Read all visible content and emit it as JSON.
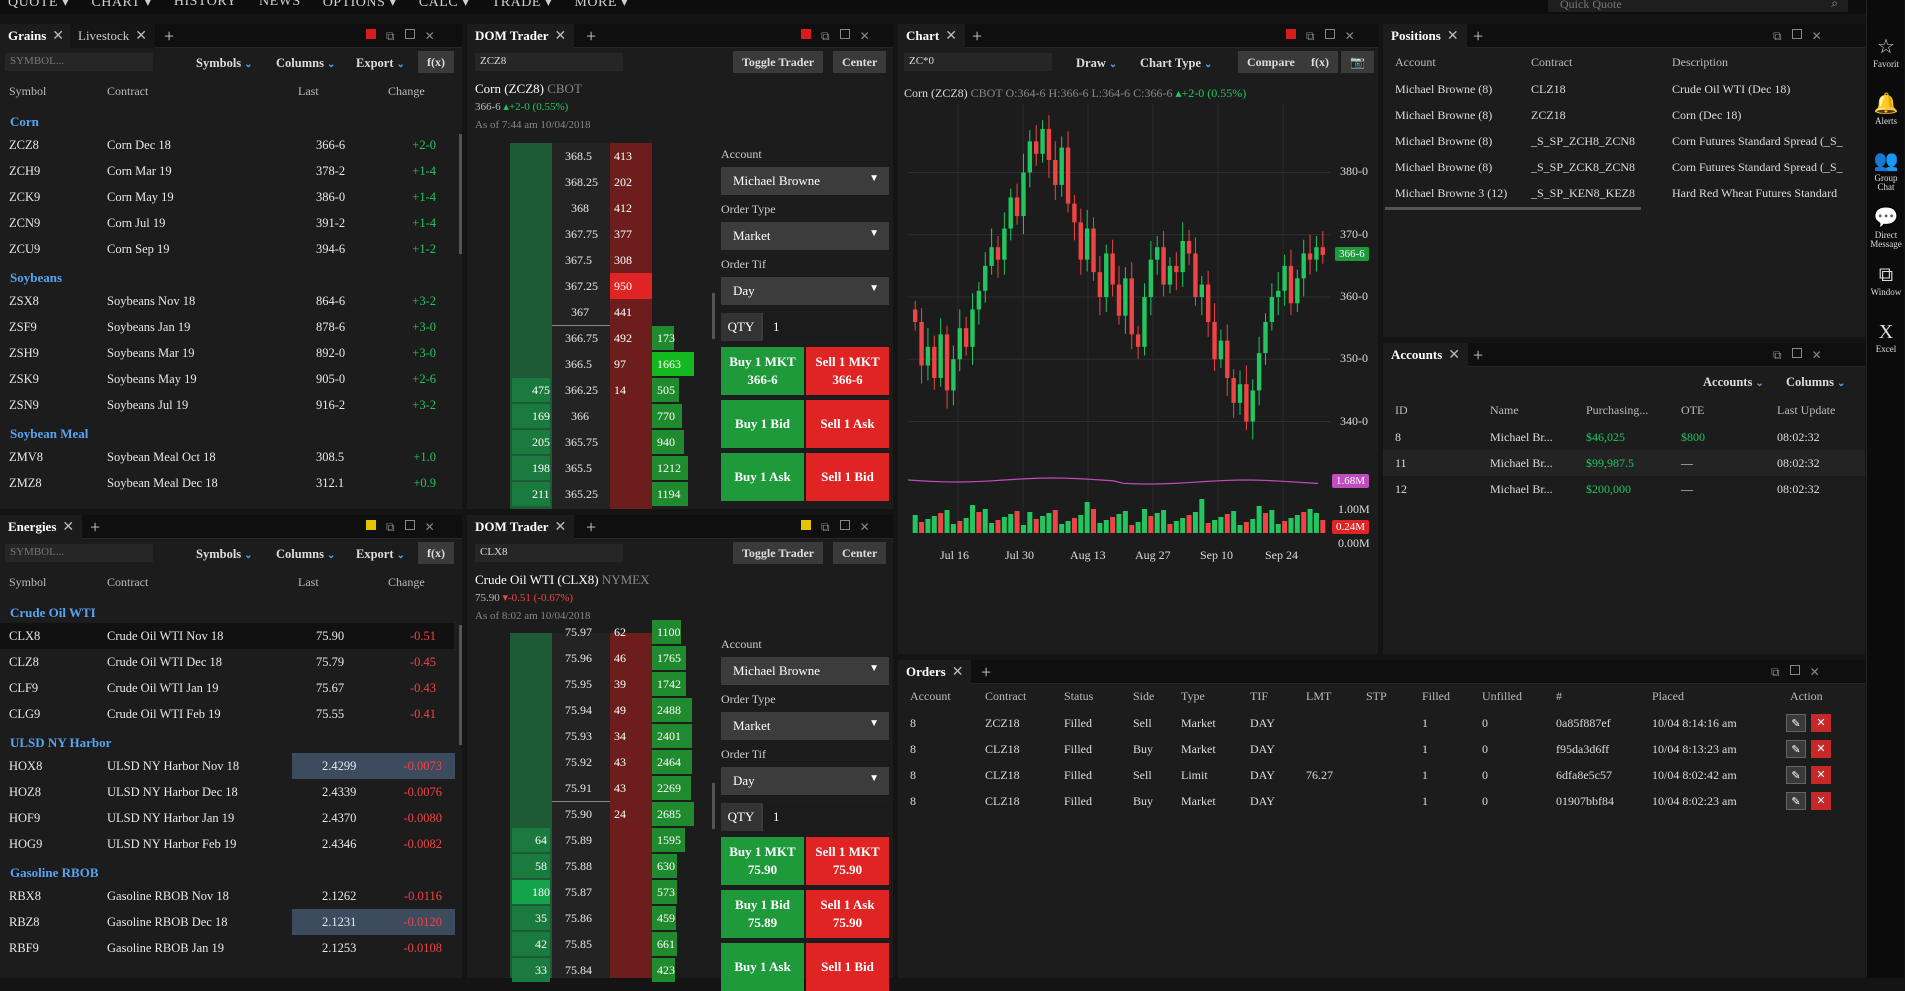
{
  "topbar": {
    "menu": [
      "QUOTE ▾",
      "CHART ▾",
      "HISTORY",
      "NEWS",
      "OPTIONS ▾",
      "CALC ▾",
      "TRADE ▾",
      "MORE ▾"
    ],
    "quick_placeholder": "Quick Quote"
  },
  "rail": [
    {
      "icon": "☆",
      "label": "Favorit"
    },
    {
      "icon": "🔔",
      "label": "Alerts"
    },
    {
      "icon": "👥",
      "label": "Group Chat"
    },
    {
      "icon": "💬",
      "label": "Direct Message"
    },
    {
      "icon": "⧉",
      "label": "Window"
    },
    {
      "icon": "X",
      "label": "Excel"
    }
  ],
  "common": {
    "symbols": "Symbols",
    "columns": "Columns",
    "export": "Export",
    "fx": "f(x)",
    "symbol_ph": "SYMBOL...",
    "col_symbol": "Symbol",
    "col_contract": "Contract",
    "col_last": "Last",
    "col_change": "Change",
    "close": "✕",
    "plus": "+"
  },
  "grains": {
    "tab1": "Grains",
    "tab2": "Livestock",
    "groups": [
      {
        "name": "Corn",
        "rows": [
          [
            "ZCZ8",
            "Corn Dec 18",
            "366-6",
            "+2-0"
          ],
          [
            "ZCH9",
            "Corn Mar 19",
            "378-2",
            "+1-4"
          ],
          [
            "ZCK9",
            "Corn May 19",
            "386-0",
            "+1-4"
          ],
          [
            "ZCN9",
            "Corn Jul 19",
            "391-2",
            "+1-4"
          ],
          [
            "ZCU9",
            "Corn Sep 19",
            "394-6",
            "+1-2"
          ]
        ]
      },
      {
        "name": "Soybeans",
        "rows": [
          [
            "ZSX8",
            "Soybeans Nov 18",
            "864-6",
            "+3-2"
          ],
          [
            "ZSF9",
            "Soybeans Jan 19",
            "878-6",
            "+3-0"
          ],
          [
            "ZSH9",
            "Soybeans Mar 19",
            "892-0",
            "+3-0"
          ],
          [
            "ZSK9",
            "Soybeans May 19",
            "905-0",
            "+2-6"
          ],
          [
            "ZSN9",
            "Soybeans Jul 19",
            "916-2",
            "+3-2"
          ]
        ]
      },
      {
        "name": "Soybean Meal",
        "rows": [
          [
            "ZMV8",
            "Soybean Meal Oct 18",
            "308.5",
            "+1.0"
          ],
          [
            "ZMZ8",
            "Soybean Meal Dec 18",
            "312.1",
            "+0.9"
          ]
        ]
      }
    ]
  },
  "energies": {
    "tab1": "Energies",
    "groups": [
      {
        "name": "Crude Oil WTI",
        "rows": [
          [
            "CLX8",
            "Crude Oil WTI Nov 18",
            "75.90",
            "-0.51"
          ],
          [
            "CLZ8",
            "Crude Oil WTI Dec 18",
            "75.79",
            "-0.45"
          ],
          [
            "CLF9",
            "Crude Oil WTI Jan 19",
            "75.67",
            "-0.43"
          ],
          [
            "CLG9",
            "Crude Oil WTI Feb 19",
            "75.55",
            "-0.41"
          ]
        ]
      },
      {
        "name": "ULSD NY Harbor",
        "rows": [
          [
            "HOX8",
            "ULSD NY Harbor Nov 18",
            "2.4299",
            "-0.0073"
          ],
          [
            "HOZ8",
            "ULSD NY Harbor Dec 18",
            "2.4339",
            "-0.0076"
          ],
          [
            "HOF9",
            "ULSD NY Harbor Jan 19",
            "2.4370",
            "-0.0080"
          ],
          [
            "HOG9",
            "ULSD NY Harbor Feb 19",
            "2.4346",
            "-0.0082"
          ]
        ]
      },
      {
        "name": "Gasoline RBOB",
        "rows": [
          [
            "RBX8",
            "Gasoline RBOB Nov 18",
            "2.1262",
            "-0.0116"
          ],
          [
            "RBZ8",
            "Gasoline RBOB Dec 18",
            "2.1231",
            "-0.0120"
          ],
          [
            "RBF9",
            "Gasoline RBOB Jan 19",
            "2.1253",
            "-0.0108"
          ]
        ]
      }
    ]
  },
  "dom1": {
    "tab": "DOM Trader",
    "symbol": "ZCZ8",
    "toggle": "Toggle Trader",
    "center": "Center",
    "name": "Corn (ZCZ8)",
    "exch": "CBOT",
    "price": "366-6",
    "chg": "+2-0 (0.55%)",
    "asof": "As of 7:44 am 10/04/2018",
    "ladder": [
      [
        "",
        "368.5",
        "413",
        ""
      ],
      [
        "",
        "368.25",
        "202",
        ""
      ],
      [
        "",
        "368",
        "412",
        ""
      ],
      [
        "",
        "367.75",
        "377",
        ""
      ],
      [
        "",
        "367.5",
        "308",
        ""
      ],
      [
        "",
        "367.25",
        "950",
        ""
      ],
      [
        "",
        "367",
        "441",
        ""
      ],
      [
        "",
        "366.75",
        "492",
        "173"
      ],
      [
        "",
        "366.5",
        "97",
        "1663"
      ],
      [
        "475",
        "366.25",
        "14",
        "505"
      ],
      [
        "169",
        "366",
        "",
        "770"
      ],
      [
        "205",
        "365.75",
        "",
        "940"
      ],
      [
        "198",
        "365.5",
        "",
        "1212"
      ],
      [
        "211",
        "365.25",
        "",
        "1194"
      ]
    ],
    "account_lbl": "Account",
    "account": "Michael Browne",
    "otype_lbl": "Order Type",
    "otype": "Market",
    "otif_lbl": "Order Tif",
    "otif": "Day",
    "qty_lbl": "QTY",
    "qty": "1",
    "btns": [
      [
        "Buy 1 MKT",
        "366-6",
        "Sell 1 MKT",
        "366-6"
      ],
      [
        "Buy 1 Bid",
        "",
        "Sell 1 Ask",
        ""
      ],
      [
        "Buy 1 Ask",
        "",
        "Sell 1 Bid",
        ""
      ]
    ]
  },
  "dom2": {
    "tab": "DOM Trader",
    "symbol": "CLX8",
    "toggle": "Toggle Trader",
    "center": "Center",
    "name": "Crude Oil WTI (CLX8)",
    "exch": "NYMEX",
    "price": "75.90",
    "chg": "-0.51 (-0.67%)",
    "asof": "As of 8:02 am 10/04/2018",
    "ladder": [
      [
        "",
        "75.97",
        "62",
        "1100"
      ],
      [
        "",
        "75.96",
        "46",
        "1765"
      ],
      [
        "",
        "75.95",
        "39",
        "1742"
      ],
      [
        "",
        "75.94",
        "49",
        "2488"
      ],
      [
        "",
        "75.93",
        "34",
        "2401"
      ],
      [
        "",
        "75.92",
        "43",
        "2464"
      ],
      [
        "",
        "75.91",
        "43",
        "2269"
      ],
      [
        "",
        "75.90",
        "24",
        "2685"
      ],
      [
        "64",
        "75.89",
        "",
        "1595"
      ],
      [
        "58",
        "75.88",
        "",
        "630"
      ],
      [
        "180",
        "75.87",
        "",
        "573"
      ],
      [
        "35",
        "75.86",
        "",
        "459"
      ],
      [
        "42",
        "75.85",
        "",
        "661"
      ],
      [
        "33",
        "75.84",
        "",
        "423"
      ]
    ],
    "account_lbl": "Account",
    "account": "Michael Browne",
    "otype_lbl": "Order Type",
    "otype": "Market",
    "otif_lbl": "Order Tif",
    "otif": "Day",
    "qty_lbl": "QTY",
    "qty": "1",
    "btns": [
      [
        "Buy 1 MKT",
        "75.90",
        "Sell 1 MKT",
        "75.90"
      ],
      [
        "Buy 1 Bid",
        "75.89",
        "Sell 1 Ask",
        "75.90"
      ],
      [
        "Buy 1 Ask",
        "",
        "Sell 1 Bid",
        ""
      ]
    ]
  },
  "chart": {
    "tab": "Chart",
    "symbol": "ZC*0",
    "draw": "Draw",
    "ctype": "Chart Type",
    "compare": "Compare",
    "fx": "f(x)",
    "camera": "📷",
    "title_name": "Corn (ZCZ8)",
    "title_exch": "CBOT",
    "title_ohlc": "O:364-6 H:366-6 L:364-6 C:366-6",
    "title_chg": "+2-0 (0.55%)",
    "price_ticks": [
      "380-0",
      "370-0",
      "360-0",
      "350-0",
      "340-0"
    ],
    "last_badge": "366-6",
    "vol_badge1": "1.68M",
    "vol_ticks": [
      "1.00M",
      "0.00M"
    ],
    "vol_badge2": "0.24M",
    "x_ticks": [
      "Jul 16",
      "Jul 30",
      "Aug 13",
      "Aug 27",
      "Sep 10",
      "Sep 24"
    ]
  },
  "chart_data": {
    "type": "candlestick",
    "symbol": "ZC*0",
    "y_ticks": [
      "380-0",
      "370-0",
      "360-0",
      "350-0",
      "340-0"
    ],
    "ylim": [
      338,
      391
    ],
    "x_ticks": [
      "Jul 16",
      "Jul 30",
      "Aug 13",
      "Aug 27",
      "Sep 10",
      "Sep 24"
    ],
    "volume_ticks": [
      "1.00M",
      "0.00M"
    ],
    "colors": {
      "up": "#22c55e",
      "down": "#ef4444",
      "study": "#c04cc0"
    }
  },
  "positions": {
    "tab": "Positions",
    "hdr": [
      "Account",
      "Contract",
      "Description"
    ],
    "rows": [
      [
        "Michael Browne (8)",
        "CLZ18",
        "Crude Oil WTI (Dec 18)"
      ],
      [
        "Michael Browne (8)",
        "ZCZ18",
        "Corn (Dec 18)"
      ],
      [
        "Michael Browne (8)",
        "_S_SP_ZCH8_ZCN8",
        "Corn Futures Standard Spread (_S_"
      ],
      [
        "Michael Browne (8)",
        "_S_SP_ZCK8_ZCN8",
        "Corn Futures Standard Spread (_S_"
      ],
      [
        "Michael Browne 3 (12)",
        "_S_SP_KEN8_KEZ8",
        "Hard Red Wheat Futures Standard"
      ]
    ]
  },
  "accounts": {
    "tab": "Accounts",
    "menu1": "Accounts",
    "menu2": "Columns",
    "hdr": [
      "ID",
      "Name",
      "Purchasing...",
      "OTE",
      "Last Update"
    ],
    "rows": [
      [
        "8",
        "Michael Br...",
        "$46,025",
        "$800",
        "08:02:32"
      ],
      [
        "11",
        "Michael Br...",
        "$99,987.5",
        "—",
        "08:02:32"
      ],
      [
        "12",
        "Michael Br...",
        "$200,000",
        "—",
        "08:02:32"
      ]
    ]
  },
  "orders": {
    "tab": "Orders",
    "hdr": [
      "Account",
      "Contract",
      "Status",
      "Side",
      "Type",
      "TIF",
      "LMT",
      "STP",
      "Filled",
      "Unfilled",
      "#",
      "Placed",
      "Action"
    ],
    "rows": [
      [
        "8",
        "ZCZ18",
        "Filled",
        "Sell",
        "Market",
        "DAY",
        "",
        "",
        "1",
        "0",
        "0a85f887ef",
        "10/04 8:14:16 am"
      ],
      [
        "8",
        "CLZ18",
        "Filled",
        "Buy",
        "Market",
        "DAY",
        "",
        "",
        "1",
        "0",
        "f95da3d6ff",
        "10/04 8:13:23 am"
      ],
      [
        "8",
        "CLZ18",
        "Filled",
        "Sell",
        "Limit",
        "DAY",
        "76.27",
        "",
        "1",
        "0",
        "6dfa8e5c57",
        "10/04 8:02:42 am"
      ],
      [
        "8",
        "CLZ18",
        "Filled",
        "Buy",
        "Market",
        "DAY",
        "",
        "",
        "1",
        "0",
        "01907bbf84",
        "10/04 8:02:23 am"
      ]
    ]
  }
}
